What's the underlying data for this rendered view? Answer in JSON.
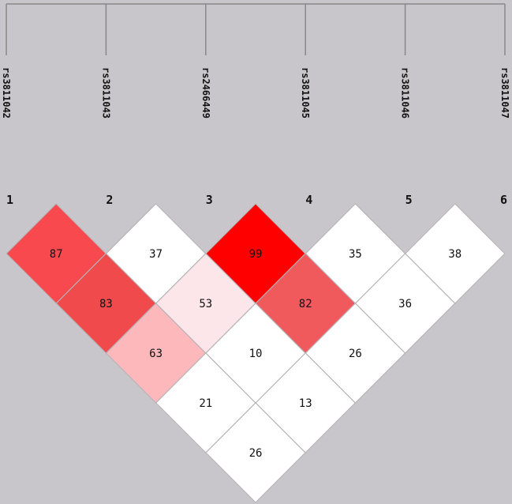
{
  "markers": [
    {
      "index": "1",
      "name": "rs3811042"
    },
    {
      "index": "2",
      "name": "rs3811043"
    },
    {
      "index": "3",
      "name": "rs2466449"
    },
    {
      "index": "4",
      "name": "rs3811045"
    },
    {
      "index": "5",
      "name": "rs3811046"
    },
    {
      "index": "6",
      "name": "rs3811047"
    }
  ],
  "ld": {
    "rows": [
      [
        87,
        37,
        99,
        35,
        38
      ],
      [
        83,
        53,
        82,
        36
      ],
      [
        63,
        10,
        26
      ],
      [
        21,
        13
      ],
      [
        26
      ]
    ],
    "colors": [
      [
        "#f84a4e",
        "#ffffff",
        "#ff0000",
        "#ffffff",
        "#ffffff"
      ],
      [
        "#f04a4c",
        "#fce6ea",
        "#f05a5c",
        "#ffffff"
      ],
      [
        "#fdb8bc",
        "#ffffff",
        "#ffffff"
      ],
      [
        "#ffffff",
        "#ffffff"
      ],
      [
        "#ffffff"
      ]
    ]
  }
}
